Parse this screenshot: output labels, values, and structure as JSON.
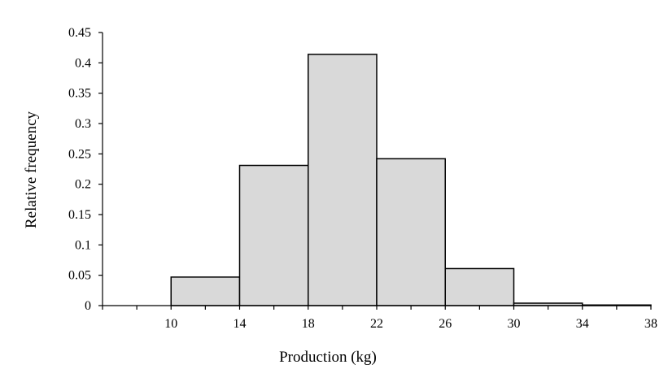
{
  "chart_data": {
    "type": "bar",
    "subtype": "histogram",
    "title": "",
    "xlabel": "Production (kg)",
    "ylabel": "Relative frequency",
    "xlim": [
      6,
      38
    ],
    "ylim": [
      0,
      0.45
    ],
    "x_ticks": [
      10,
      14,
      18,
      22,
      26,
      30,
      34,
      38
    ],
    "y_ticks": [
      0,
      0.05,
      0.1,
      0.15,
      0.2,
      0.25,
      0.3,
      0.35,
      0.4,
      0.45
    ],
    "y_tick_labels": [
      "0",
      "0.05",
      "0.1",
      "0.15",
      "0.2",
      "0.25",
      "0.3",
      "0.35",
      "0.4",
      "0.45"
    ],
    "bins": [
      {
        "start": 10,
        "end": 14,
        "value": 0.047
      },
      {
        "start": 14,
        "end": 18,
        "value": 0.231
      },
      {
        "start": 18,
        "end": 22,
        "value": 0.414
      },
      {
        "start": 22,
        "end": 26,
        "value": 0.242
      },
      {
        "start": 26,
        "end": 30,
        "value": 0.061
      },
      {
        "start": 30,
        "end": 34,
        "value": 0.004
      },
      {
        "start": 34,
        "end": 38,
        "value": 0.001
      }
    ],
    "bar_fill": "#d9d9d9",
    "bar_stroke": "#000000",
    "grid": false,
    "legend": "none"
  }
}
